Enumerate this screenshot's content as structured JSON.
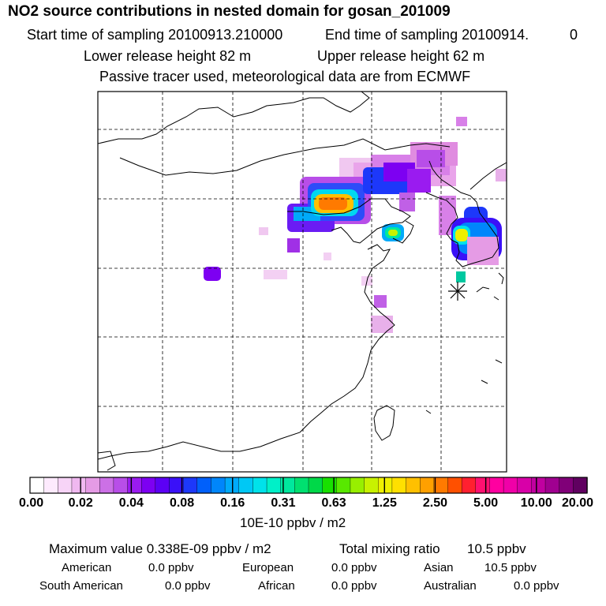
{
  "header": {
    "title": "NO2 source contributions in nested domain for gosan_201009",
    "start_label": "Start time of sampling 20100913.210000",
    "end_label": "End time of sampling 20100914.",
    "end_value": "0",
    "lower_height": "Lower release height   82 m",
    "upper_height": "Upper release height   62 m",
    "tracer_note": "Passive tracer used, meteorological data are from ECMWF"
  },
  "chart_data": {
    "type": "heatmap",
    "title": "NO2 source contributions in nested domain for gosan_201009",
    "colorbar_ticks": [
      "0.00",
      "0.02",
      "0.04",
      "0.08",
      "0.16",
      "0.31",
      "0.63",
      "1.25",
      "2.50",
      "5.00",
      "10.00",
      "20.00"
    ],
    "colorbar_colors": [
      "#ffffff",
      "#fdeafd",
      "#f7d4f7",
      "#f0b8f0",
      "#e59be5",
      "#cc70e6",
      "#b84ee8",
      "#9a1bf0",
      "#7d00f2",
      "#5c00f5",
      "#3a10f8",
      "#1d38fa",
      "#0060fb",
      "#0086fb",
      "#00aafa",
      "#00c8f5",
      "#00e2ea",
      "#00f0c8",
      "#00e89e",
      "#00e070",
      "#00d848",
      "#18e000",
      "#58e800",
      "#98ef00",
      "#c8f200",
      "#eef000",
      "#ffe000",
      "#ffc000",
      "#ffa000",
      "#ff7a00",
      "#ff5000",
      "#ff2030",
      "#ff1070",
      "#ff00a0",
      "#f000a8",
      "#d800a8",
      "#c000a0",
      "#a00090",
      "#800078",
      "#600060"
    ],
    "units": "10E-10 ppbv / m2",
    "grid_lon_lines": 5,
    "grid_lat_lines": 5,
    "release_marker": "gosan-star"
  },
  "summary": {
    "max_label": "Maximum value  0.338E-09 ppbv / m2",
    "total_label": "Total mixing ratio",
    "total_value": "10.5 ppbv",
    "regions": [
      {
        "name": "American",
        "value": "0.0 ppbv"
      },
      {
        "name": "European",
        "value": "0.0 ppbv"
      },
      {
        "name": "Asian",
        "value": "10.5 ppbv"
      },
      {
        "name": "South American",
        "value": "0.0 ppbv"
      },
      {
        "name": "African",
        "value": "0.0 ppbv"
      },
      {
        "name": "Australian",
        "value": "0.0 ppbv"
      }
    ]
  }
}
